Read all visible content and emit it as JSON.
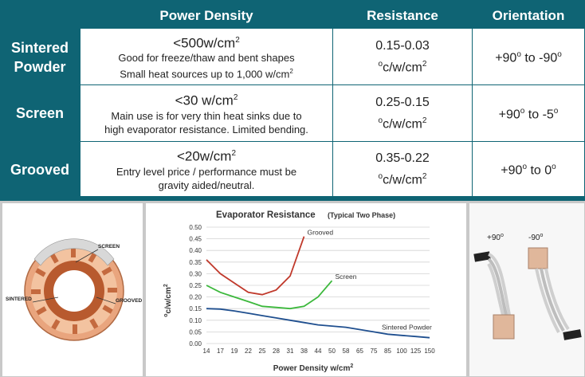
{
  "table": {
    "headers": {
      "power_density": "Power Density",
      "resistance": "Resistance",
      "orientation": "Orientation"
    },
    "rows": [
      {
        "label_line1": "Sintered",
        "label_line2": "Powder",
        "pd_main": "<500w/cm",
        "pd_detail1": "Good for freeze/thaw and bent shapes",
        "pd_detail2": "Small heat sources up to 1,000 w/cm",
        "res_range": "0.15-0.03",
        "res_unit": "c/w/cm",
        "orient_from": "+90",
        "orient_to": "-90",
        "orient_sep": " to "
      },
      {
        "label_line1": "Screen",
        "pd_main": "<30 w/cm",
        "pd_detail1": "Main use is for very thin heat sinks due to",
        "pd_detail2": "high evaporator resistance. Limited bending.",
        "res_range": "0.25-0.15",
        "res_unit": "c/w/cm",
        "orient_from": "+90",
        "orient_to": "-5",
        "orient_sep": " to "
      },
      {
        "label_line1": "Grooved",
        "pd_main": "<20w/cm",
        "pd_detail1": "Entry level price / performance must be",
        "pd_detail2": "gravity aided/neutral.",
        "res_range": "0.35-0.22",
        "res_unit": "c/w/cm",
        "orient_from": "+90",
        "orient_to": "0",
        "orient_sep": " to "
      }
    ],
    "sup2": "2",
    "sup_o": "o"
  },
  "diagram": {
    "labels": {
      "screen": "SCREEN",
      "sintered": "SINTERED",
      "grooved": "GROOVED"
    }
  },
  "orientation_image": {
    "label_pos": "+90",
    "label_neg": "-90",
    "sup_o": "o"
  },
  "colors": {
    "teal": "#0f6474",
    "grooved": "#c0392b",
    "screen": "#3cb83c",
    "sintered": "#1f4f8f",
    "copper": "#d98c5f"
  },
  "chart_data": {
    "type": "line",
    "title": "Evaporator Resistance",
    "subtitle": "(Typical Two Phase)",
    "xlabel": "Power Density w/cm",
    "xlabel_sup": "2",
    "ylabel": "c/w/cm",
    "ylabel_sup_o": "o",
    "ylabel_sup_2": "2",
    "categories": [
      "14",
      "17",
      "19",
      "22",
      "25",
      "28",
      "31",
      "38",
      "44",
      "50",
      "58",
      "65",
      "75",
      "85",
      "100",
      "125",
      "150"
    ],
    "ylim": [
      0,
      0.5
    ],
    "yticks": [
      "0.00",
      "0.05",
      "0.10",
      "0.15",
      "0.20",
      "0.25",
      "0.30",
      "0.35",
      "0.40",
      "0.45",
      "0.50"
    ],
    "grid": true,
    "series": [
      {
        "name": "Grooved",
        "color": "#c0392b",
        "values": [
          0.36,
          0.3,
          0.26,
          0.22,
          0.21,
          0.23,
          0.29,
          0.46,
          null,
          null,
          null,
          null,
          null,
          null,
          null,
          null,
          null
        ]
      },
      {
        "name": "Screen",
        "color": "#3cb83c",
        "values": [
          0.25,
          0.22,
          0.2,
          0.18,
          0.16,
          0.155,
          0.15,
          0.16,
          0.2,
          0.27,
          null,
          null,
          null,
          null,
          null,
          null,
          null
        ]
      },
      {
        "name": "Sintered Powder",
        "color": "#1f4f8f",
        "values": [
          0.15,
          0.148,
          0.14,
          0.13,
          0.12,
          0.11,
          0.1,
          0.09,
          0.08,
          0.075,
          0.07,
          0.06,
          0.05,
          0.04,
          0.035,
          0.03,
          0.025
        ]
      }
    ]
  }
}
